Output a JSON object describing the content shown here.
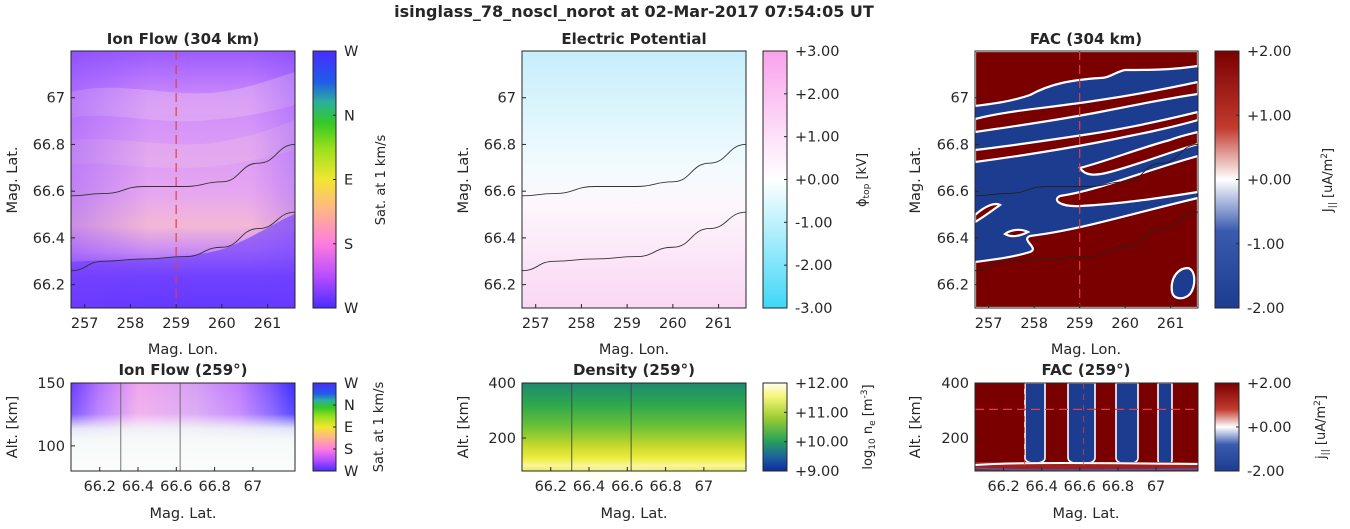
{
  "figure_title": "isinglass_78_noscl_norot at 02-Mar-2017 07:54:05 UT",
  "colors": {
    "vector_colormap": [
      "#4b2cff",
      "#1f4fe8",
      "#2bb7a8",
      "#35c825",
      "#9be01c",
      "#f2e631",
      "#ffb58a",
      "#ff7be0",
      "#b44cff",
      "#4b2cff"
    ],
    "potential_colormap": [
      "#3fd7f7",
      "#ffffff",
      "#f9a2ec"
    ],
    "density_colormap": [
      "#0d2c9c",
      "#1b8f6e",
      "#2fb13c",
      "#c8d92d",
      "#f6f67a",
      "#fffdf0"
    ],
    "fac_colormap": [
      "#1c3c8f",
      "#ffffff",
      "#7a0000"
    ],
    "cut_line": "#e04040",
    "contour": "#333333"
  },
  "chart_data": [
    {
      "panel": "ion-flow-top",
      "type": "heatmap",
      "title": "Ion Flow (304 km)",
      "xlabel": "Mag. Lon.",
      "ylabel": "Mag. Lat.",
      "xlim": [
        256.7,
        261.6
      ],
      "ylim": [
        66.1,
        67.2
      ],
      "xticks": [
        "257",
        "258",
        "259",
        "260",
        "261"
      ],
      "yticks": [
        "67",
        "66.8",
        "66.6",
        "66.4",
        "66.2"
      ],
      "colorbar": {
        "label": "Sat. at 1 km/s",
        "ticks": [
          "W",
          "N",
          "E",
          "S",
          "W"
        ]
      },
      "cut_longitude": 259,
      "contours": [
        {
          "x": [
            256.7,
            257.4,
            258.3,
            259.2,
            260.0,
            260.8,
            261.6
          ],
          "y": [
            66.58,
            66.59,
            66.62,
            66.62,
            66.64,
            66.72,
            66.8
          ]
        },
        {
          "x": [
            256.7,
            257.4,
            258.3,
            259.2,
            260.0,
            260.8,
            261.6
          ],
          "y": [
            66.26,
            66.3,
            66.31,
            66.32,
            66.36,
            66.44,
            66.51
          ]
        }
      ]
    },
    {
      "panel": "electric-potential",
      "type": "heatmap",
      "title": "Electric Potential",
      "xlabel": "Mag. Lon.",
      "ylabel": "Mag. Lat.",
      "xlim": [
        256.7,
        261.6
      ],
      "ylim": [
        66.1,
        67.2
      ],
      "xticks": [
        "257",
        "258",
        "259",
        "260",
        "261"
      ],
      "yticks": [
        "67",
        "66.8",
        "66.6",
        "66.4",
        "66.2"
      ],
      "colorbar": {
        "label_main": "ϕ",
        "label_sub": "top",
        "label_unit": " [kV]",
        "range": [
          -3,
          3
        ],
        "ticks": [
          "+3.00",
          "+2.00",
          "+1.00",
          "+0.00",
          "-1.00",
          "-2.00",
          "-3.00"
        ]
      },
      "contours": [
        {
          "x": [
            256.7,
            257.4,
            258.3,
            259.2,
            260.0,
            260.8,
            261.6
          ],
          "y": [
            66.58,
            66.59,
            66.62,
            66.62,
            66.64,
            66.72,
            66.8
          ]
        },
        {
          "x": [
            256.7,
            257.4,
            258.3,
            259.2,
            260.0,
            260.8,
            261.6
          ],
          "y": [
            66.26,
            66.3,
            66.31,
            66.32,
            66.36,
            66.44,
            66.51
          ]
        }
      ]
    },
    {
      "panel": "fac-top",
      "type": "heatmap",
      "title": "FAC (304 km)",
      "xlabel": "Mag. Lon.",
      "ylabel": "Mag. Lat.",
      "xlim": [
        256.7,
        261.6
      ],
      "ylim": [
        66.1,
        67.2
      ],
      "xticks": [
        "257",
        "258",
        "259",
        "260",
        "261"
      ],
      "yticks": [
        "67",
        "66.8",
        "66.6",
        "66.4",
        "66.2"
      ],
      "colorbar": {
        "label_main": "J",
        "label_sub": "||",
        "label_unit": " [uA/m",
        "label_sup": "2",
        "label_end": "]",
        "range": [
          -2,
          2
        ],
        "ticks": [
          "+2.00",
          "+1.00",
          "+0.00",
          "-1.00",
          "-2.00"
        ]
      },
      "cut_longitude": 259,
      "contours": [
        {
          "x": [
            256.7,
            257.4,
            258.3,
            259.2,
            260.0,
            260.8,
            261.6
          ],
          "y": [
            66.58,
            66.59,
            66.62,
            66.62,
            66.64,
            66.72,
            66.8
          ]
        },
        {
          "x": [
            256.7,
            257.4,
            258.3,
            259.2,
            260.0,
            260.8,
            261.6
          ],
          "y": [
            66.26,
            66.3,
            66.31,
            66.32,
            66.36,
            66.44,
            66.51
          ]
        }
      ]
    },
    {
      "panel": "ion-flow-bottom",
      "type": "heatmap",
      "title": "Ion Flow (259°)",
      "xlabel": "Mag. Lat.",
      "ylabel": "Alt. [km]",
      "xlim": [
        66.05,
        67.22
      ],
      "ylim": [
        80,
        150
      ],
      "xticks": [
        "66.2",
        "66.4",
        "66.6",
        "66.8",
        "67"
      ],
      "yticks": [
        "150",
        "100"
      ],
      "colorbar": {
        "label": "Sat. at 1 km/s",
        "ticks": [
          "W",
          "N",
          "E",
          "S",
          "W"
        ]
      },
      "vlines": [
        66.31,
        66.62
      ]
    },
    {
      "panel": "density-bottom",
      "type": "heatmap",
      "title": "Density (259°)",
      "xlabel": "Mag. Lat.",
      "ylabel": "Alt. [km]",
      "xlim": [
        66.05,
        67.22
      ],
      "ylim": [
        80,
        400
      ],
      "xticks": [
        "66.2",
        "66.4",
        "66.6",
        "66.8",
        "67"
      ],
      "yticks": [
        "400",
        "200"
      ],
      "colorbar": {
        "label_pre": "log",
        "label_sub": "10",
        "label_mid": " n",
        "label_sub2": "e",
        "label_unit": " [m",
        "label_sup": "-3",
        "label_end": "]",
        "range": [
          9,
          12
        ],
        "ticks": [
          "+12.00",
          "+11.00",
          "+10.00",
          "+9.00"
        ]
      },
      "vlines": [
        66.31,
        66.62
      ]
    },
    {
      "panel": "fac-bottom",
      "type": "heatmap",
      "title": "FAC (259°)",
      "xlabel": "Mag. Lat.",
      "ylabel": "Alt. [km]",
      "xlim": [
        66.05,
        67.22
      ],
      "ylim": [
        80,
        400
      ],
      "xticks": [
        "66.2",
        "66.4",
        "66.6",
        "66.8",
        "67"
      ],
      "yticks": [
        "400",
        "200"
      ],
      "colorbar": {
        "label_main": "j",
        "label_sub": "||",
        "label_unit": " [uA/m",
        "label_sup": "2",
        "label_end": "]",
        "range": [
          -2,
          2
        ],
        "ticks": [
          "+2.00",
          "+0.00",
          "-2.00"
        ]
      },
      "cut_altitude": 304,
      "vlines": [
        66.31,
        66.62
      ]
    }
  ]
}
